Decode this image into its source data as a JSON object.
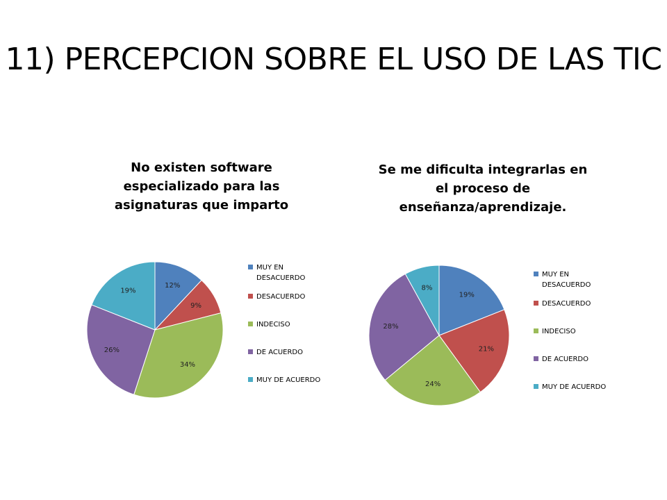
{
  "page": {
    "title": "11) PERCEPCION SOBRE EL USO DE LAS TIC"
  },
  "legend_labels": [
    "MUY EN DESACUERDO",
    "DESACUERDO",
    "INDECISO",
    "DE ACUERDO",
    "MUY DE ACUERDO"
  ],
  "colors": [
    "#4f81bd",
    "#c0504d",
    "#9bbb59",
    "#8064a2",
    "#4bacc6"
  ],
  "chart_data": [
    {
      "type": "pie",
      "title": "No existen software especializado para las asignaturas que imparto",
      "categories": [
        "MUY EN DESACUERDO",
        "DESACUERDO",
        "INDECISO",
        "DE ACUERDO",
        "MUY DE ACUERDO"
      ],
      "values": [
        12,
        9,
        34,
        26,
        19
      ],
      "labels": [
        "12%",
        "9%",
        "34%",
        "26%",
        "19%"
      ],
      "legend_position": "right"
    },
    {
      "type": "pie",
      "title": "Se me dificulta integrarlas en el proceso de enseñanza/aprendizaje.",
      "categories": [
        "MUY EN DESACUERDO",
        "DESACUERDO",
        "INDECISO",
        "DE ACUERDO",
        "MUY DE ACUERDO"
      ],
      "values": [
        19,
        21,
        24,
        28,
        8
      ],
      "labels": [
        "19%",
        "21%",
        "24%",
        "28%",
        "8%"
      ],
      "legend_position": "right"
    }
  ]
}
